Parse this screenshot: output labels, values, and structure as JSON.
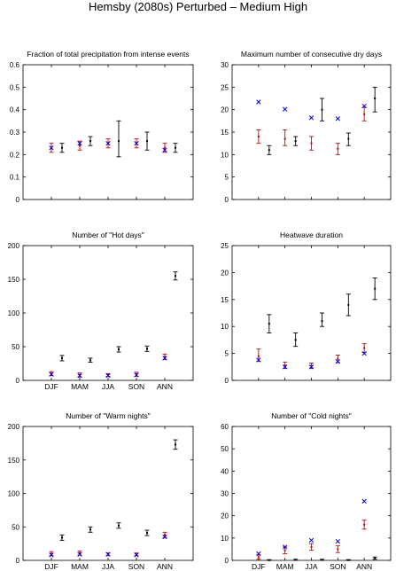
{
  "title": "Hemsby (2080s) Perturbed – Medium High",
  "colors": {
    "model": "#000000",
    "perturbed": "#d40000",
    "observed": "#0000e0",
    "axis": "#000000"
  },
  "categories": [
    "DJF",
    "MAM",
    "JJA",
    "SON",
    "ANN"
  ],
  "chart_data": [
    {
      "type": "scatter",
      "title": "Fraction of total precipitation from intense events",
      "ylim": [
        0,
        0.6
      ],
      "yticks": [
        0,
        0.1,
        0.2,
        0.3,
        0.4,
        0.5,
        0.6
      ],
      "show_xticklabels": false,
      "observed": [
        0.23,
        0.25,
        0.25,
        0.25,
        0.22
      ],
      "perturbed": [
        {
          "mid": 0.23,
          "low": 0.21,
          "high": 0.25
        },
        {
          "mid": 0.24,
          "low": 0.22,
          "high": 0.26
        },
        {
          "mid": 0.25,
          "low": 0.23,
          "high": 0.27
        },
        {
          "mid": 0.25,
          "low": 0.23,
          "high": 0.27
        },
        {
          "mid": 0.23,
          "low": 0.21,
          "high": 0.25
        }
      ],
      "model": [
        {
          "mid": 0.23,
          "low": 0.21,
          "high": 0.25
        },
        {
          "mid": 0.26,
          "low": 0.24,
          "high": 0.28
        },
        {
          "mid": 0.26,
          "low": 0.19,
          "high": 0.35
        },
        {
          "mid": 0.26,
          "low": 0.22,
          "high": 0.3
        },
        {
          "mid": 0.23,
          "low": 0.21,
          "high": 0.25
        }
      ]
    },
    {
      "type": "scatter",
      "title": "Maximum number of consecutive dry days",
      "ylim": [
        0,
        30
      ],
      "yticks": [
        0,
        5,
        10,
        15,
        20,
        25,
        30
      ],
      "show_xticklabels": false,
      "observed": [
        21.7,
        20.1,
        18.2,
        18,
        20.8
      ],
      "perturbed": [
        {
          "mid": 14,
          "low": 12.5,
          "high": 15.5
        },
        {
          "mid": 13.5,
          "low": 12,
          "high": 15.5
        },
        {
          "mid": 12.5,
          "low": 11,
          "high": 14
        },
        {
          "mid": 11.3,
          "low": 10,
          "high": 12.5
        },
        {
          "mid": 19,
          "low": 17.5,
          "high": 20.5
        }
      ],
      "model": [
        {
          "mid": 11,
          "low": 10,
          "high": 12
        },
        {
          "mid": 13,
          "low": 12,
          "high": 14
        },
        {
          "mid": 20,
          "low": 17.5,
          "high": 22.5
        },
        {
          "mid": 13.5,
          "low": 12,
          "high": 14.8
        },
        {
          "mid": 22.5,
          "low": 19.5,
          "high": 25
        }
      ]
    },
    {
      "type": "scatter",
      "title": "Number of \"Hot days\"",
      "ylim": [
        0,
        200
      ],
      "yticks": [
        0,
        50,
        100,
        150,
        200
      ],
      "show_xticklabels": true,
      "observed": [
        9,
        7,
        7,
        8,
        33
      ],
      "perturbed": [
        {
          "mid": 10,
          "low": 7,
          "high": 13
        },
        {
          "mid": 8,
          "low": 5,
          "high": 11
        },
        {
          "mid": 8,
          "low": 6,
          "high": 10
        },
        {
          "mid": 9,
          "low": 6,
          "high": 12
        },
        {
          "mid": 35,
          "low": 31,
          "high": 39
        }
      ],
      "model": [
        {
          "mid": 33,
          "low": 29,
          "high": 37
        },
        {
          "mid": 30,
          "low": 27,
          "high": 33
        },
        {
          "mid": 46,
          "low": 42,
          "high": 50
        },
        {
          "mid": 47,
          "low": 43,
          "high": 51
        },
        {
          "mid": 155,
          "low": 149,
          "high": 161
        }
      ]
    },
    {
      "type": "scatter",
      "title": "Heatwave duration",
      "ylim": [
        0,
        25
      ],
      "yticks": [
        0,
        5,
        10,
        15,
        20,
        25
      ],
      "show_xticklabels": false,
      "observed": [
        3.8,
        2.5,
        2.5,
        3.5,
        5
      ],
      "perturbed": [
        {
          "mid": 4.5,
          "low": 3.5,
          "high": 5.8
        },
        {
          "mid": 2.8,
          "low": 2.2,
          "high": 3.4
        },
        {
          "mid": 2.7,
          "low": 2.2,
          "high": 3.2
        },
        {
          "mid": 4,
          "low": 3.3,
          "high": 4.7
        },
        {
          "mid": 6,
          "low": 5.2,
          "high": 6.8
        }
      ],
      "model": [
        {
          "mid": 10.5,
          "low": 8.8,
          "high": 12.2
        },
        {
          "mid": 7.5,
          "low": 6.3,
          "high": 8.8
        },
        {
          "mid": 11,
          "low": 10,
          "high": 12.5
        },
        {
          "mid": 14,
          "low": 12,
          "high": 16
        },
        {
          "mid": 17,
          "low": 15,
          "high": 19
        }
      ]
    },
    {
      "type": "scatter",
      "title": "Number of \"Warm nights\"",
      "ylim": [
        0,
        200
      ],
      "yticks": [
        0,
        50,
        100,
        150,
        200
      ],
      "show_xticklabels": true,
      "observed": [
        8,
        9,
        9,
        8,
        35
      ],
      "perturbed": [
        {
          "mid": 10,
          "low": 7,
          "high": 13
        },
        {
          "mid": 11,
          "low": 8,
          "high": 14
        },
        {
          "mid": 9,
          "low": 7,
          "high": 11
        },
        {
          "mid": 9,
          "low": 7,
          "high": 11
        },
        {
          "mid": 38,
          "low": 34,
          "high": 42
        }
      ],
      "model": [
        {
          "mid": 34,
          "low": 30,
          "high": 38
        },
        {
          "mid": 46,
          "low": 42,
          "high": 50
        },
        {
          "mid": 52,
          "low": 48,
          "high": 56
        },
        {
          "mid": 41,
          "low": 37,
          "high": 45
        },
        {
          "mid": 173,
          "low": 166,
          "high": 180
        }
      ]
    },
    {
      "type": "scatter",
      "title": "Number of \"Cold nights\"",
      "ylim": [
        0,
        60
      ],
      "yticks": [
        0,
        10,
        20,
        30,
        40,
        50,
        60
      ],
      "show_xticklabels": true,
      "observed": [
        3,
        6,
        9,
        8.5,
        26.5
      ],
      "perturbed": [
        {
          "mid": 1.5,
          "low": 0.5,
          "high": 2.5
        },
        {
          "mid": 4.5,
          "low": 3,
          "high": 6
        },
        {
          "mid": 6,
          "low": 4.5,
          "high": 7.5
        },
        {
          "mid": 5,
          "low": 3.5,
          "high": 6.5
        },
        {
          "mid": 16,
          "low": 14,
          "high": 18
        }
      ],
      "model": [
        {
          "mid": 0.1,
          "low": 0,
          "high": 0.3
        },
        {
          "mid": 0.2,
          "low": 0,
          "high": 0.5
        },
        {
          "mid": 0.2,
          "low": 0,
          "high": 0.5
        },
        {
          "mid": 0.1,
          "low": 0,
          "high": 0.3
        },
        {
          "mid": 1,
          "low": 0.5,
          "high": 1.5
        }
      ]
    }
  ]
}
